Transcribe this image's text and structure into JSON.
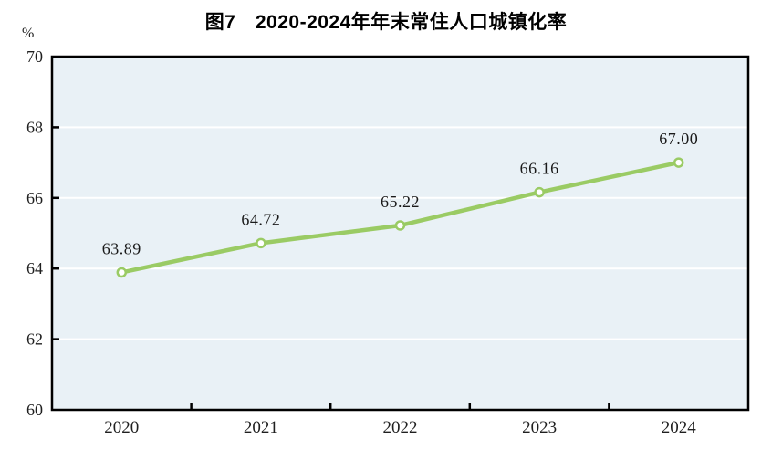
{
  "title": "图7　2020-2024年年末常住人口城镇化率",
  "colors": {
    "line": "#9ACB64",
    "marker_fill": "#FFFFFF",
    "plot_bg": "#E9F1F6",
    "gridline": "#FFFFFF",
    "axis": "#000000",
    "tick_text": "#1F1F1F",
    "data_label_text": "#1A1A1A",
    "page_bg": "#FFFFFF"
  },
  "chart_data": {
    "type": "line",
    "title": "图7　2020-2024年年末常住人口城镇化率",
    "unit_label": "%",
    "categories": [
      "2020",
      "2021",
      "2022",
      "2023",
      "2024"
    ],
    "series": [
      {
        "name": "年末常住人口城镇化率",
        "values": [
          63.89,
          64.72,
          65.22,
          66.16,
          67.0
        ]
      }
    ],
    "data_labels": [
      "63.89",
      "64.72",
      "65.22",
      "66.16",
      "67.00"
    ],
    "xlabel": "",
    "ylabel": "%",
    "ylim": [
      60,
      70
    ],
    "yticks": [
      60,
      62,
      64,
      66,
      68,
      70
    ],
    "grid": true,
    "legend_position": "none"
  }
}
